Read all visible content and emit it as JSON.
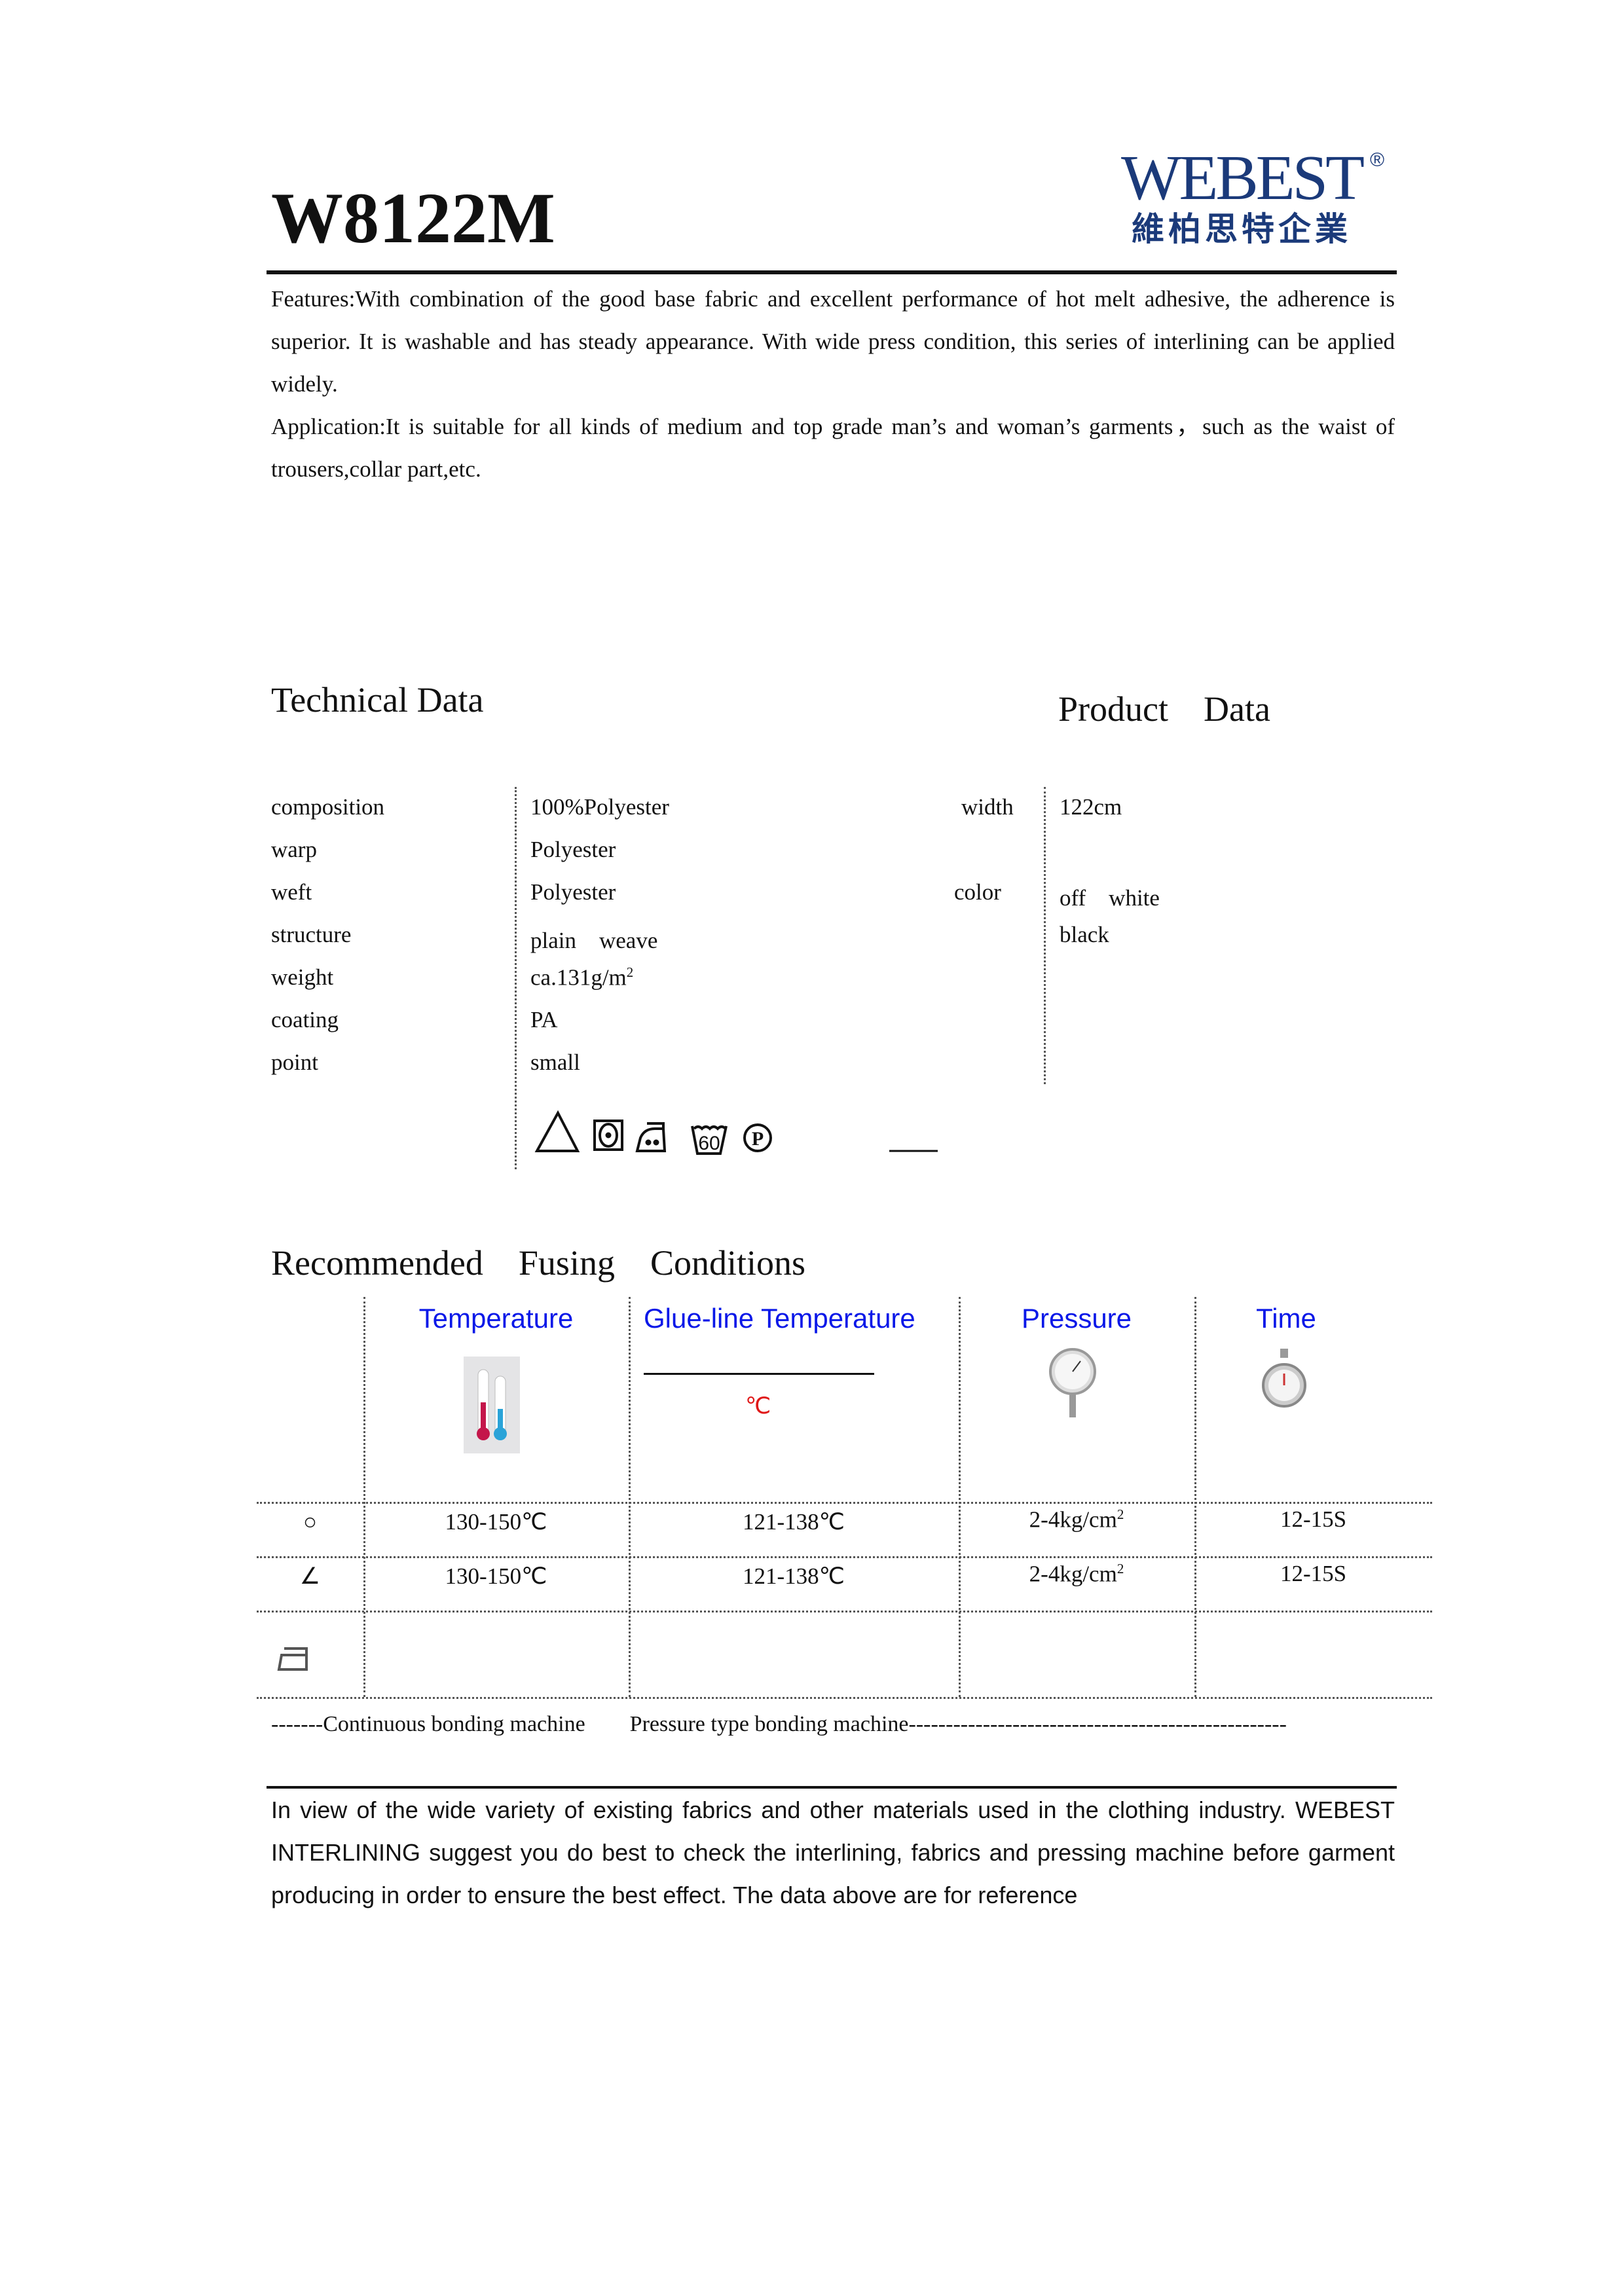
{
  "header": {
    "title": "W8122M",
    "logo": {
      "en": "WEBEST",
      "reg": "®",
      "cn": "維柏思特企業",
      "color": "#1b3a7a"
    }
  },
  "intro": {
    "features": "Features:With combination of the good base fabric and excellent performance of hot melt adhesive, the adherence is superior. It is washable and has steady appearance. With wide press condition, this series of interlining can be applied widely.",
    "application": "Application:It is suitable for all kinds of medium and top grade man’s and woman’s garments，such as the waist of trousers,collar part,etc."
  },
  "technical": {
    "heading": "Technical Data",
    "rows": [
      {
        "label": "composition",
        "value": "100%Polyester"
      },
      {
        "label": "warp",
        "value": "Polyester"
      },
      {
        "label": "weft",
        "value": "Polyester"
      },
      {
        "label": "structure",
        "value": "plain　weave"
      },
      {
        "label": "weight",
        "value": "ca.131g/m",
        "sup": "2"
      },
      {
        "label": "coating",
        "value": "PA"
      },
      {
        "label": "point",
        "value": "small"
      }
    ],
    "care_icons": [
      "do-not-bleach-triangle-icon",
      "tumble-dry-icon",
      "iron-two-dots-icon",
      "wash-60-icon",
      "dry-clean-p-icon"
    ],
    "wash_temp": "60",
    "dry_clean_letter": "P"
  },
  "product": {
    "heading": "Product　Data",
    "width_label": "width",
    "width_value": "122cm",
    "color_label": "color",
    "colors": [
      "off　white",
      "black"
    ]
  },
  "fusing": {
    "heading": "Recommended　Fusing　Conditions",
    "header_color": "#0a18e8",
    "columns": [
      "Temperature",
      "Glue-line Temperature",
      "Pressure",
      "Time"
    ],
    "glue_unit": "℃",
    "rows": [
      {
        "symbol": "○",
        "temperature": "130-150℃",
        "glue": "121-138℃",
        "pressure": "2-4kg/cm",
        "pressure_sup": "2",
        "time": "12-15S"
      },
      {
        "symbol": "∠",
        "temperature": "130-150℃",
        "glue": "121-138℃",
        "pressure": "2-4kg/cm",
        "pressure_sup": "2",
        "time": "12-15S"
      }
    ],
    "footer": "-------Continuous bonding machine　　Pressure type bonding machine---------------------------------------------------"
  },
  "disclaimer": "In view of the wide variety of existing fabrics and other materials used in the clothing industry. WEBEST INTERLINING suggest you do best to check the interlining, fabrics and pressing machine before garment producing in order to ensure the best effect. The data above are for reference"
}
